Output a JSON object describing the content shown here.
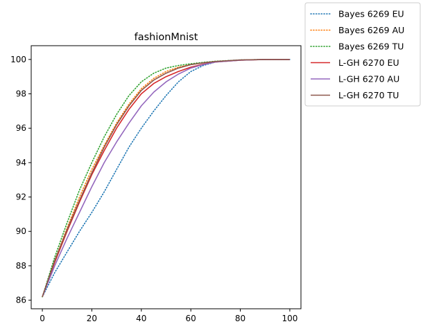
{
  "chart_data": {
    "type": "line",
    "title": "fashionMnist",
    "xlabel": "",
    "ylabel": "",
    "xlim": [
      -4.5,
      104.5
    ],
    "ylim": [
      85.5,
      100.8
    ],
    "xticks": [
      0,
      20,
      40,
      60,
      80,
      100
    ],
    "yticks": [
      86,
      88,
      90,
      92,
      94,
      96,
      98,
      100
    ],
    "grid": false,
    "legend_position": "outside top-right",
    "series": [
      {
        "name": "Bayes 6269 EU",
        "color": "#1f77b4",
        "style": "dotted",
        "x": [
          0,
          5,
          10,
          15,
          20,
          25,
          30,
          35,
          40,
          45,
          50,
          55,
          60,
          65,
          70,
          75,
          80,
          90,
          100
        ],
        "y": [
          86.2,
          87.6,
          88.8,
          90.0,
          91.1,
          92.3,
          93.6,
          94.9,
          96.0,
          97.0,
          97.9,
          98.7,
          99.3,
          99.65,
          99.85,
          99.93,
          99.97,
          100.0,
          100.0
        ]
      },
      {
        "name": "Bayes 6269 AU",
        "color": "#ff7f0e",
        "style": "dotted",
        "x": [
          0,
          5,
          10,
          15,
          20,
          25,
          30,
          35,
          40,
          45,
          50,
          55,
          60,
          65,
          70,
          80,
          90,
          100
        ],
        "y": [
          86.2,
          88.3,
          90.2,
          92.0,
          93.6,
          95.0,
          96.3,
          97.4,
          98.3,
          98.9,
          99.3,
          99.55,
          99.7,
          99.8,
          99.88,
          99.96,
          100.0,
          100.0
        ]
      },
      {
        "name": "Bayes 6269 TU",
        "color": "#2ca02c",
        "style": "dotted",
        "x": [
          0,
          5,
          10,
          15,
          20,
          25,
          30,
          35,
          40,
          45,
          50,
          55,
          60,
          65,
          70,
          80,
          90,
          100
        ],
        "y": [
          86.2,
          88.5,
          90.5,
          92.4,
          94.0,
          95.5,
          96.8,
          97.9,
          98.7,
          99.2,
          99.5,
          99.65,
          99.75,
          99.83,
          99.9,
          99.97,
          100.0,
          100.0
        ]
      },
      {
        "name": "L-GH 6270 EU",
        "color": "#d62728",
        "style": "solid",
        "x": [
          0,
          5,
          10,
          15,
          20,
          25,
          30,
          35,
          40,
          45,
          50,
          55,
          60,
          65,
          70,
          80,
          90,
          100
        ],
        "y": [
          86.2,
          88.2,
          90.0,
          91.7,
          93.3,
          94.7,
          96.0,
          97.1,
          98.0,
          98.6,
          99.0,
          99.3,
          99.55,
          99.72,
          99.85,
          99.96,
          100.0,
          100.0
        ]
      },
      {
        "name": "L-GH 6270 AU",
        "color": "#9467bd",
        "style": "solid",
        "x": [
          0,
          5,
          10,
          15,
          20,
          25,
          30,
          35,
          40,
          45,
          50,
          55,
          60,
          65,
          70,
          80,
          90,
          100
        ],
        "y": [
          86.2,
          88.0,
          89.6,
          91.1,
          92.6,
          94.0,
          95.2,
          96.3,
          97.3,
          98.1,
          98.7,
          99.15,
          99.5,
          99.7,
          99.85,
          99.96,
          100.0,
          100.0
        ]
      },
      {
        "name": "L-GH 6270 TU",
        "color": "#8c564b",
        "style": "solid",
        "x": [
          0,
          5,
          10,
          15,
          20,
          25,
          30,
          35,
          40,
          45,
          50,
          55,
          60,
          65,
          70,
          80,
          90,
          100
        ],
        "y": [
          86.2,
          88.3,
          90.1,
          91.8,
          93.4,
          94.9,
          96.2,
          97.3,
          98.2,
          98.8,
          99.2,
          99.5,
          99.7,
          99.8,
          99.88,
          99.97,
          100.0,
          100.0
        ]
      }
    ]
  }
}
